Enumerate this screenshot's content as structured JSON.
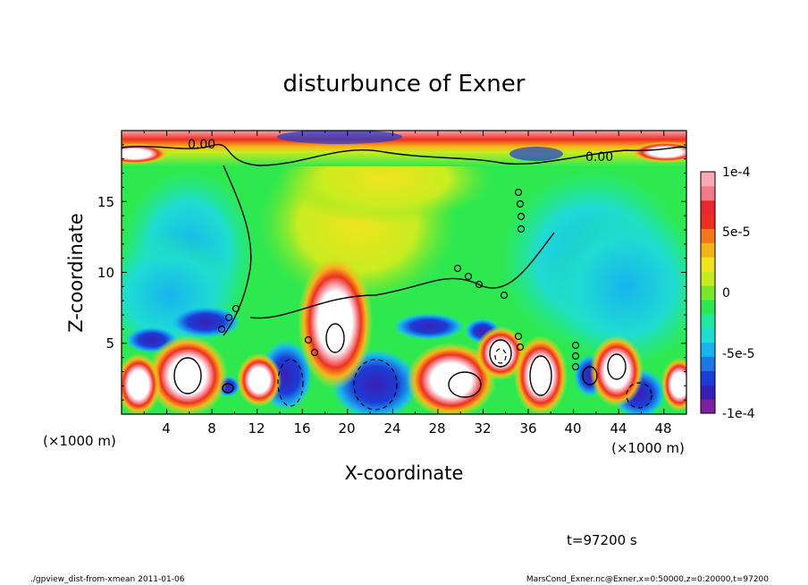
{
  "chart_data": {
    "type": "heatmap",
    "title": "disturbunce of Exner",
    "xlabel": "X-coordinate",
    "ylabel": "Z-coordinate",
    "x_unit_left": "(×1000 m)",
    "x_unit_right": "(×1000 m)",
    "xlim": [
      0,
      50
    ],
    "ylim": [
      0,
      20
    ],
    "x_ticks": [
      "4",
      "8",
      "12",
      "16",
      "20",
      "24",
      "28",
      "32",
      "36",
      "40",
      "44",
      "48"
    ],
    "y_ticks": [
      "5",
      "10",
      "15"
    ],
    "colorbar": {
      "range": [
        -0.0001,
        0.0001
      ],
      "tick_labels": [
        "1e-4",
        "5e-5",
        "0",
        "-5e-5",
        "-1e-4"
      ],
      "colors": [
        "#7d1fa0",
        "#3a1fb4",
        "#1c3cd6",
        "#1f78e6",
        "#17b4ee",
        "#1fdcd2",
        "#1fe8a0",
        "#2ee850",
        "#7ae82a",
        "#c8ec20",
        "#f0e41e",
        "#f6b41c",
        "#f6781c",
        "#ee3020",
        "#e8282e",
        "#f07a86",
        "#f6a8b4"
      ]
    },
    "contour_labels": [
      "0.00",
      "0.00"
    ],
    "contour_zero_label": "0",
    "time_label": "t=97200 s"
  },
  "footer": {
    "left": "./gpview_dist-from-xmean   2011-01-06",
    "right": "MarsCond_Exner.nc@Exner,x=0:50000,z=0:20000,t=97200"
  }
}
